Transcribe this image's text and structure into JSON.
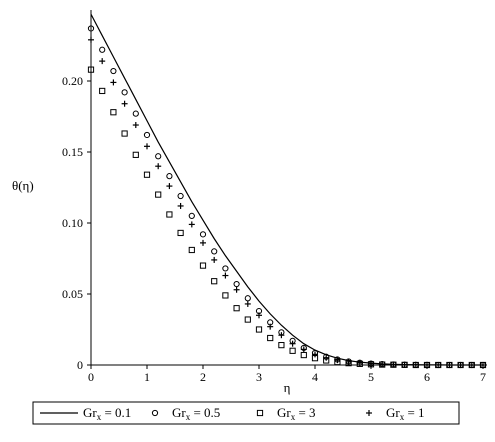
{
  "chart_data": {
    "type": "line",
    "xlabel": "η",
    "ylabel": "θ(η)",
    "xlim": [
      0,
      7
    ],
    "ylim": [
      0,
      0.25
    ],
    "xticks": [
      "0",
      "1",
      "2",
      "3",
      "4",
      "5",
      "6",
      "7"
    ],
    "yticks": [
      "0",
      "0.05",
      "0.10",
      "0.15",
      "0.20"
    ],
    "grid": false,
    "legend_placement": "bottom",
    "series": [
      {
        "name": "Gr_x = 0.1",
        "legend_main": "Gr",
        "legend_sub": "x",
        "legend_rest": " = 0.1",
        "marker": "line",
        "color": "#000000",
        "x": [
          0,
          0.2,
          0.4,
          0.6,
          0.8,
          1.0,
          1.2,
          1.4,
          1.6,
          1.8,
          2.0,
          2.2,
          2.4,
          2.6,
          2.8,
          3.0,
          3.2,
          3.4,
          3.6,
          3.8,
          4.0,
          4.2,
          4.4,
          4.6,
          4.8,
          5.0,
          5.2,
          5.4,
          5.6,
          5.8,
          6.0,
          6.2,
          6.4,
          6.6,
          6.8,
          7.0
        ],
        "values": [
          0.247,
          0.232,
          0.217,
          0.202,
          0.187,
          0.172,
          0.157,
          0.143,
          0.129,
          0.115,
          0.102,
          0.089,
          0.077,
          0.066,
          0.055,
          0.045,
          0.036,
          0.028,
          0.021,
          0.015,
          0.0105,
          0.0072,
          0.0048,
          0.0031,
          0.002,
          0.0013,
          0.0008,
          0.0005,
          0.0003,
          0.0002,
          0.0001,
          0.0001,
          0,
          0,
          0,
          0
        ]
      },
      {
        "name": "Gr_x = 0.5",
        "legend_main": "Gr",
        "legend_sub": "x",
        "legend_rest": " = 0.5",
        "marker": "circle",
        "color": "#000000",
        "x": [
          0,
          0.2,
          0.4,
          0.6,
          0.8,
          1.0,
          1.2,
          1.4,
          1.6,
          1.8,
          2.0,
          2.2,
          2.4,
          2.6,
          2.8,
          3.0,
          3.2,
          3.4,
          3.6,
          3.8,
          4.0,
          4.2,
          4.4,
          4.6,
          4.8,
          5.0,
          5.2,
          5.4,
          5.6,
          5.8,
          6.0,
          6.2,
          6.4,
          6.6,
          6.8,
          7.0
        ],
        "values": [
          0.237,
          0.222,
          0.207,
          0.192,
          0.177,
          0.162,
          0.147,
          0.133,
          0.119,
          0.105,
          0.092,
          0.08,
          0.068,
          0.057,
          0.047,
          0.038,
          0.03,
          0.023,
          0.017,
          0.012,
          0.0085,
          0.0058,
          0.0039,
          0.0025,
          0.0016,
          0.001,
          0.0006,
          0.0004,
          0.0002,
          0.0001,
          0.0001,
          0,
          0,
          0,
          0,
          0
        ]
      },
      {
        "name": "Gr_x = 3",
        "legend_main": "Gr",
        "legend_sub": "x",
        "legend_rest": " = 3",
        "marker": "square",
        "color": "#000000",
        "x": [
          0,
          0.2,
          0.4,
          0.6,
          0.8,
          1.0,
          1.2,
          1.4,
          1.6,
          1.8,
          2.0,
          2.2,
          2.4,
          2.6,
          2.8,
          3.0,
          3.2,
          3.4,
          3.6,
          3.8,
          4.0,
          4.2,
          4.4,
          4.6,
          4.8,
          5.0,
          5.2,
          5.4,
          5.6,
          5.8,
          6.0,
          6.2,
          6.4,
          6.6,
          6.8,
          7.0
        ],
        "values": [
          0.208,
          0.193,
          0.178,
          0.163,
          0.148,
          0.134,
          0.12,
          0.106,
          0.093,
          0.081,
          0.07,
          0.059,
          0.049,
          0.04,
          0.032,
          0.025,
          0.019,
          0.014,
          0.01,
          0.007,
          0.0048,
          0.0032,
          0.0021,
          0.0013,
          0.0008,
          0.0005,
          0.0003,
          0.0002,
          0.0001,
          0,
          0,
          0,
          0,
          0,
          0,
          0
        ]
      },
      {
        "name": "Gr_x = 1",
        "legend_main": "Gr",
        "legend_sub": "x",
        "legend_rest": " = 1",
        "marker": "plus",
        "color": "#000000",
        "x": [
          0,
          0.2,
          0.4,
          0.6,
          0.8,
          1.0,
          1.2,
          1.4,
          1.6,
          1.8,
          2.0,
          2.2,
          2.4,
          2.6,
          2.8,
          3.0,
          3.2,
          3.4,
          3.6,
          3.8,
          4.0,
          4.2,
          4.4,
          4.6,
          4.8,
          5.0,
          5.2,
          5.4,
          5.6,
          5.8,
          6.0,
          6.2,
          6.4,
          6.6,
          6.8,
          7.0
        ],
        "values": [
          0.229,
          0.214,
          0.199,
          0.184,
          0.169,
          0.154,
          0.14,
          0.126,
          0.112,
          0.099,
          0.086,
          0.074,
          0.063,
          0.053,
          0.043,
          0.035,
          0.027,
          0.021,
          0.015,
          0.011,
          0.0075,
          0.0051,
          0.0034,
          0.0022,
          0.0014,
          0.0009,
          0.0005,
          0.0003,
          0.0002,
          0.0001,
          0,
          0,
          0,
          0,
          0,
          0
        ]
      }
    ]
  }
}
